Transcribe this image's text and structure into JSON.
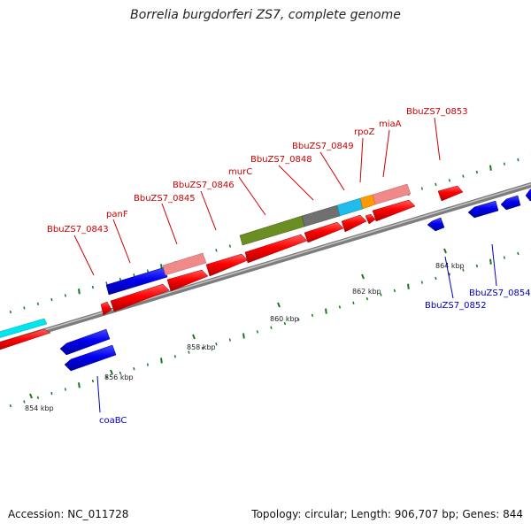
{
  "title": "Borrelia burgdorferi ZS7, complete genome",
  "accession_label": "Accession: NC_011728",
  "summary_label": "Topology: circular; Length: 906,707 bp; Genes: 844",
  "colors": {
    "backbone": "#8f8f8f",
    "forward_gene": "#ff0000",
    "reverse_gene": "#0000ee",
    "tick": "#1a7a1a",
    "forward_label": "#cc0000",
    "reverse_label": "#0000bb"
  },
  "ticks": [
    {
      "label": "854 kbp"
    },
    {
      "label": "856 kbp"
    },
    {
      "label": "858 kbp"
    },
    {
      "label": "860 kbp"
    },
    {
      "label": "862 kbp"
    },
    {
      "label": "864 kbp"
    }
  ],
  "gene_labels": [
    {
      "text": "BbuZS7_0843",
      "strand": "forward"
    },
    {
      "text": "panF",
      "strand": "forward"
    },
    {
      "text": "BbuZS7_0845",
      "strand": "forward"
    },
    {
      "text": "BbuZS7_0846",
      "strand": "forward"
    },
    {
      "text": "murC",
      "strand": "forward"
    },
    {
      "text": "BbuZS7_0848",
      "strand": "forward"
    },
    {
      "text": "BbuZS7_0849",
      "strand": "forward"
    },
    {
      "text": "rpoZ",
      "strand": "forward"
    },
    {
      "text": "miaA",
      "strand": "forward"
    },
    {
      "text": "BbuZS7_0853",
      "strand": "forward"
    },
    {
      "text": "coaBC",
      "strand": "reverse"
    },
    {
      "text": "BbuZS7_0852",
      "strand": "reverse"
    },
    {
      "text": "BbuZS7_0854",
      "strand": "reverse"
    }
  ],
  "features": [
    {
      "name": "cyan-feature",
      "color": "#00e5ee"
    },
    {
      "name": "blue-feature",
      "color": "#1010ee"
    },
    {
      "name": "pink-feature",
      "color": "#f08a8a"
    },
    {
      "name": "olive-feature",
      "color": "#6b8e23"
    },
    {
      "name": "gray-feature",
      "color": "#707070"
    },
    {
      "name": "sky-feature",
      "color": "#22bbee"
    },
    {
      "name": "orange-feature",
      "color": "#ff9900"
    },
    {
      "name": "pink-feature-2",
      "color": "#f08a8a"
    }
  ]
}
